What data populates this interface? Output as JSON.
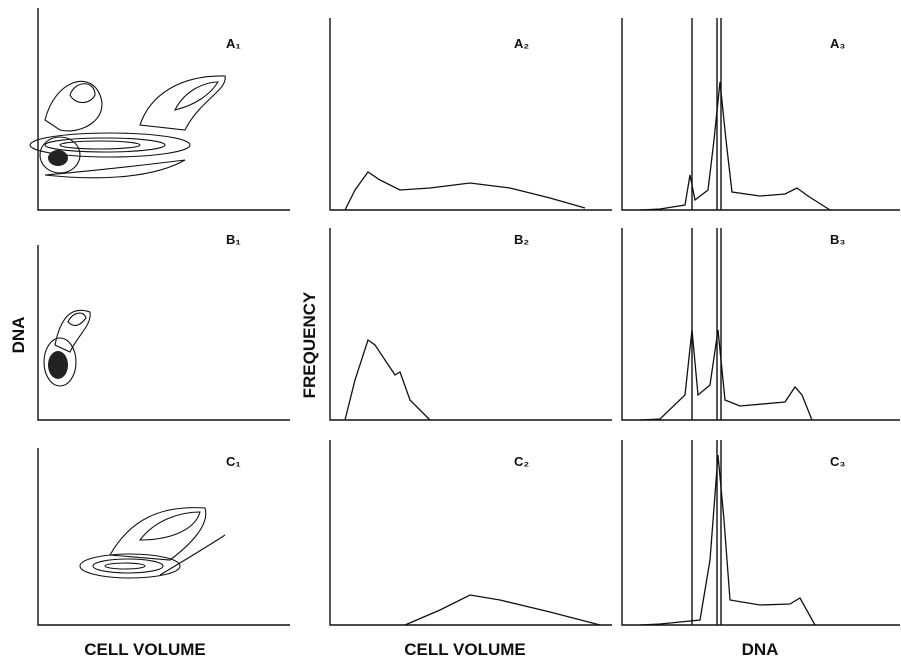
{
  "figure": {
    "panels": [
      {
        "label": "A₁"
      },
      {
        "label": "A₂"
      },
      {
        "label": "A₃"
      },
      {
        "label": "B₁"
      },
      {
        "label": "B₂"
      },
      {
        "label": "B₃"
      },
      {
        "label": "C₁"
      },
      {
        "label": "C₂"
      },
      {
        "label": "C₃"
      }
    ],
    "y_labels": [
      "DNA",
      "FREQUENCY"
    ],
    "x_labels": [
      "CELL VOLUME",
      "CELL VOLUME",
      "DNA"
    ]
  }
}
